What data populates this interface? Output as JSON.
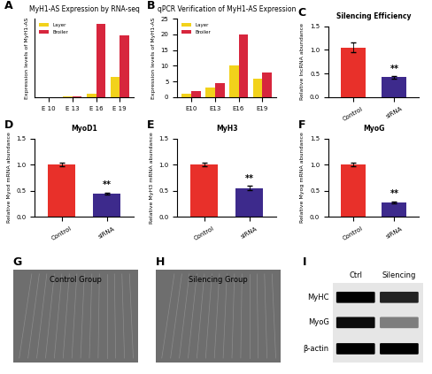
{
  "chart_data": [
    {
      "panel": "A",
      "type": "bar",
      "title": "MyH1-AS Expression by RNA-seq",
      "y_label": "Expression levels of MyH1-AS",
      "categories": [
        "E 10",
        "E 13",
        "E 16",
        "E 19"
      ],
      "series": [
        {
          "name": "Layer",
          "color": "#f2d21b",
          "values": [
            0.1,
            0.3,
            1.0,
            5.5
          ]
        },
        {
          "name": "Broiler",
          "color": "#d7263d",
          "values": [
            0.1,
            0.3,
            19.5,
            16.5
          ]
        }
      ],
      "ylim": [
        0,
        21
      ],
      "tick_labels": "x",
      "legend": "upper left"
    },
    {
      "panel": "B",
      "type": "bar",
      "title": "qPCR Verification of MyH1-AS Expression",
      "y_label": "Expression levels of MyH1-AS",
      "categories": [
        "E10",
        "E13",
        "E16",
        "E19"
      ],
      "series": [
        {
          "name": "Layer",
          "color": "#f2d21b",
          "values": [
            1,
            3,
            10,
            6
          ]
        },
        {
          "name": "Broiler",
          "color": "#d7263d",
          "values": [
            2,
            4.5,
            20,
            8
          ]
        }
      ],
      "ylim": [
        0,
        25
      ],
      "yticks": [
        0,
        5,
        10,
        15,
        20,
        25
      ],
      "legend": "upper left"
    },
    {
      "panel": "C",
      "type": "bar",
      "title": "Silencing Efficiency",
      "y_label": "Relative lncRNA abundance",
      "categories": [
        "Control",
        "siRNA"
      ],
      "values": [
        1.05,
        0.42
      ],
      "error": [
        0.1,
        0.02
      ],
      "colors": [
        "#e8302a",
        "#3d2a8c"
      ],
      "annotation": "**",
      "ylim": [
        0,
        1.5
      ],
      "yticks": [
        {
          "value": 0,
          "label": "0.0"
        },
        {
          "value": 0.5,
          "label": "0.5"
        },
        {
          "value": 1.0,
          "label": "1.0"
        },
        {
          "value": 1.5,
          "label": "1.5"
        }
      ]
    },
    {
      "panel": "D",
      "type": "bar",
      "title": "MyoD1",
      "y_label": "Relative Myod mRNA abundance",
      "categories": [
        "Control",
        "siRNA"
      ],
      "values": [
        1.0,
        0.45
      ],
      "error": [
        0.03,
        0.02
      ],
      "colors": [
        "#e8302a",
        "#3d2a8c"
      ],
      "annotation": "**",
      "ylim": [
        0,
        1.5
      ],
      "yticks": [
        {
          "value": 0,
          "label": "0.0"
        },
        {
          "value": 0.5,
          "label": "0.5"
        },
        {
          "value": 1.0,
          "label": "1.0"
        },
        {
          "value": 1.5,
          "label": "1.5"
        }
      ]
    },
    {
      "panel": "E",
      "type": "bar",
      "title": "MyH3",
      "y_label": "Relative MyH3 mRNA abundance",
      "categories": [
        "Control",
        "siRNA"
      ],
      "values": [
        1.0,
        0.55
      ],
      "error": [
        0.04,
        0.04
      ],
      "colors": [
        "#e8302a",
        "#3d2a8c"
      ],
      "annotation": "**",
      "ylim": [
        0,
        1.5
      ],
      "yticks": [
        {
          "value": 0,
          "label": "0.0"
        },
        {
          "value": 0.5,
          "label": "0.5"
        },
        {
          "value": 1.0,
          "label": "1.0"
        },
        {
          "value": 1.5,
          "label": "1.5"
        }
      ]
    },
    {
      "panel": "F",
      "type": "bar",
      "title": "MyoG",
      "y_label": "Relative Myog mRNA abundance",
      "categories": [
        "Control",
        "siRNA"
      ],
      "values": [
        1.0,
        0.28
      ],
      "error": [
        0.04,
        0.02
      ],
      "colors": [
        "#e8302a",
        "#3d2a8c"
      ],
      "annotation": "**",
      "ylim": [
        0,
        1.5
      ],
      "yticks": [
        {
          "value": 0,
          "label": "0.0"
        },
        {
          "value": 0.5,
          "label": "0.5"
        },
        {
          "value": 1.0,
          "label": "1.0"
        },
        {
          "value": 1.5,
          "label": "1.5"
        }
      ]
    }
  ],
  "images": [
    {
      "panel": "G",
      "title": "Control Group"
    },
    {
      "panel": "H",
      "title": "Silencing Group"
    }
  ],
  "blot": {
    "panel": "I",
    "columns": [
      "Ctrl",
      "Silencing"
    ],
    "rows": [
      "MyHC",
      "MyoG",
      "β-actin"
    ]
  }
}
